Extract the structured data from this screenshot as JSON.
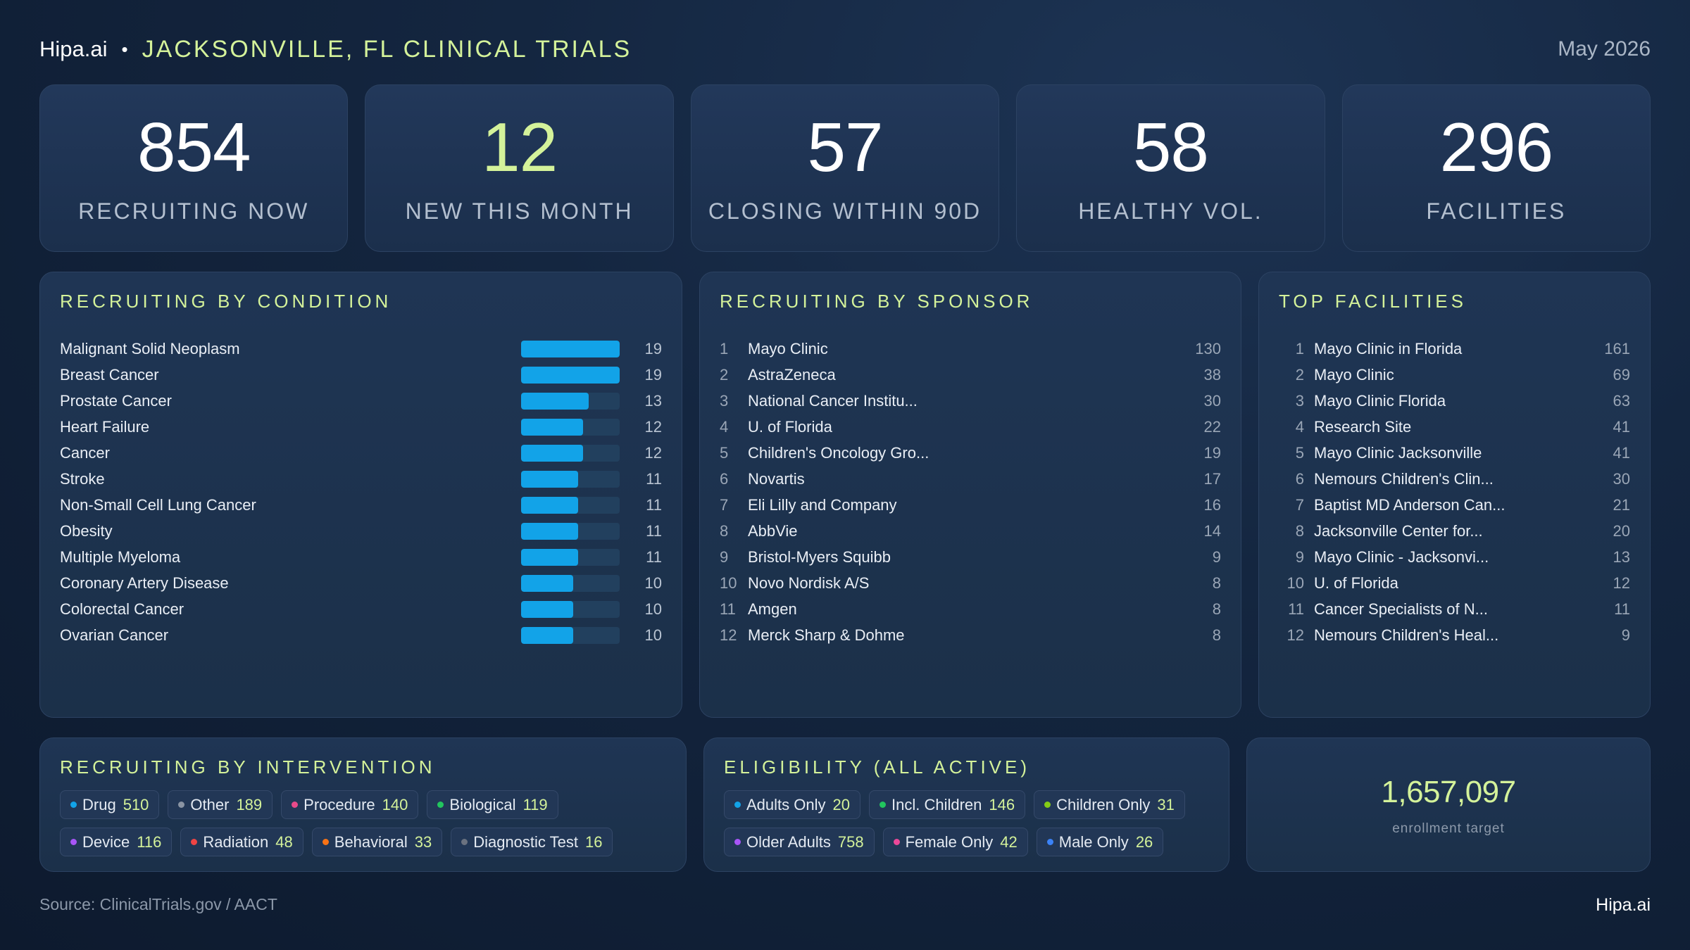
{
  "header": {
    "brand": "Hipa.ai",
    "separator": "•",
    "title": "JACKSONVILLE, FL CLINICAL TRIALS",
    "date": "May 2026"
  },
  "kpis": [
    {
      "value": "854",
      "label": "RECRUITING NOW"
    },
    {
      "value": "12",
      "label": "NEW THIS MONTH"
    },
    {
      "value": "57",
      "label": "CLOSING WITHIN 90D"
    },
    {
      "value": "58",
      "label": "HEALTHY VOL."
    },
    {
      "value": "296",
      "label": "FACILITIES"
    }
  ],
  "conditions": {
    "title": "RECRUITING BY CONDITION",
    "max": 19,
    "items": [
      {
        "name": "Malignant Solid Neoplasm",
        "value": 19
      },
      {
        "name": "Breast Cancer",
        "value": 19
      },
      {
        "name": "Prostate Cancer",
        "value": 13
      },
      {
        "name": "Heart Failure",
        "value": 12
      },
      {
        "name": "Cancer",
        "value": 12
      },
      {
        "name": "Stroke",
        "value": 11
      },
      {
        "name": "Non-Small Cell Lung Cancer",
        "value": 11
      },
      {
        "name": "Obesity",
        "value": 11
      },
      {
        "name": "Multiple Myeloma",
        "value": 11
      },
      {
        "name": "Coronary Artery Disease",
        "value": 10
      },
      {
        "name": "Colorectal Cancer",
        "value": 10
      },
      {
        "name": "Ovarian Cancer",
        "value": 10
      }
    ]
  },
  "sponsors": {
    "title": "RECRUITING BY SPONSOR",
    "items": [
      {
        "rank": "1",
        "name": "Mayo Clinic",
        "value": "130"
      },
      {
        "rank": "2",
        "name": "AstraZeneca",
        "value": "38"
      },
      {
        "rank": "3",
        "name": "National Cancer Institu...",
        "value": "30"
      },
      {
        "rank": "4",
        "name": "U. of Florida",
        "value": "22"
      },
      {
        "rank": "5",
        "name": "Children's Oncology Gro...",
        "value": "19"
      },
      {
        "rank": "6",
        "name": "Novartis",
        "value": "17"
      },
      {
        "rank": "7",
        "name": "Eli Lilly and Company",
        "value": "16"
      },
      {
        "rank": "8",
        "name": "AbbVie",
        "value": "14"
      },
      {
        "rank": "9",
        "name": "Bristol-Myers Squibb",
        "value": "9"
      },
      {
        "rank": "10",
        "name": "Novo Nordisk A/S",
        "value": "8"
      },
      {
        "rank": "11",
        "name": "Amgen",
        "value": "8"
      },
      {
        "rank": "12",
        "name": "Merck Sharp & Dohme",
        "value": "8"
      }
    ]
  },
  "facilities": {
    "title": "TOP FACILITIES",
    "items": [
      {
        "rank": "1",
        "name": "Mayo Clinic in Florida",
        "value": "161"
      },
      {
        "rank": "2",
        "name": "Mayo Clinic",
        "value": "69"
      },
      {
        "rank": "3",
        "name": "Mayo Clinic Florida",
        "value": "63"
      },
      {
        "rank": "4",
        "name": "Research Site",
        "value": "41"
      },
      {
        "rank": "5",
        "name": "Mayo Clinic Jacksonville",
        "value": "41"
      },
      {
        "rank": "6",
        "name": "Nemours Children's Clin...",
        "value": "30"
      },
      {
        "rank": "7",
        "name": "Baptist MD Anderson Can...",
        "value": "21"
      },
      {
        "rank": "8",
        "name": "Jacksonville Center for...",
        "value": "20"
      },
      {
        "rank": "9",
        "name": "Mayo Clinic - Jacksonvi...",
        "value": "13"
      },
      {
        "rank": "10",
        "name": "U. of Florida",
        "value": "12"
      },
      {
        "rank": "11",
        "name": "Cancer Specialists of N...",
        "value": "11"
      },
      {
        "rank": "12",
        "name": "Nemours Children's Heal...",
        "value": "9"
      }
    ]
  },
  "interventions": {
    "title": "RECRUITING BY INTERVENTION",
    "items": [
      {
        "label": "Drug",
        "value": "510",
        "color": "#12a3e8"
      },
      {
        "label": "Other",
        "value": "189",
        "color": "#8a94a3"
      },
      {
        "label": "Procedure",
        "value": "140",
        "color": "#e84a8a"
      },
      {
        "label": "Biological",
        "value": "119",
        "color": "#22c55e"
      },
      {
        "label": "Device",
        "value": "116",
        "color": "#a855f7"
      },
      {
        "label": "Radiation",
        "value": "48",
        "color": "#ef4444"
      },
      {
        "label": "Behavioral",
        "value": "33",
        "color": "#f97316"
      },
      {
        "label": "Diagnostic Test",
        "value": "16",
        "color": "#6b7280"
      }
    ]
  },
  "eligibility": {
    "title": "ELIGIBILITY (ALL ACTIVE)",
    "items": [
      {
        "label": "Adults Only",
        "value": "20",
        "color": "#12a3e8"
      },
      {
        "label": "Incl. Children",
        "value": "146",
        "color": "#22c55e"
      },
      {
        "label": "Children Only",
        "value": "31",
        "color": "#84cc16"
      },
      {
        "label": "Older Adults",
        "value": "758",
        "color": "#a855f7"
      },
      {
        "label": "Female Only",
        "value": "42",
        "color": "#ec4899"
      },
      {
        "label": "Male Only",
        "value": "26",
        "color": "#3b82f6"
      }
    ]
  },
  "enrollment": {
    "value": "1,657,097",
    "label": "enrollment target"
  },
  "footer": {
    "source": "Source: ClinicalTrials.gov / AACT",
    "brand": "Hipa.ai"
  }
}
